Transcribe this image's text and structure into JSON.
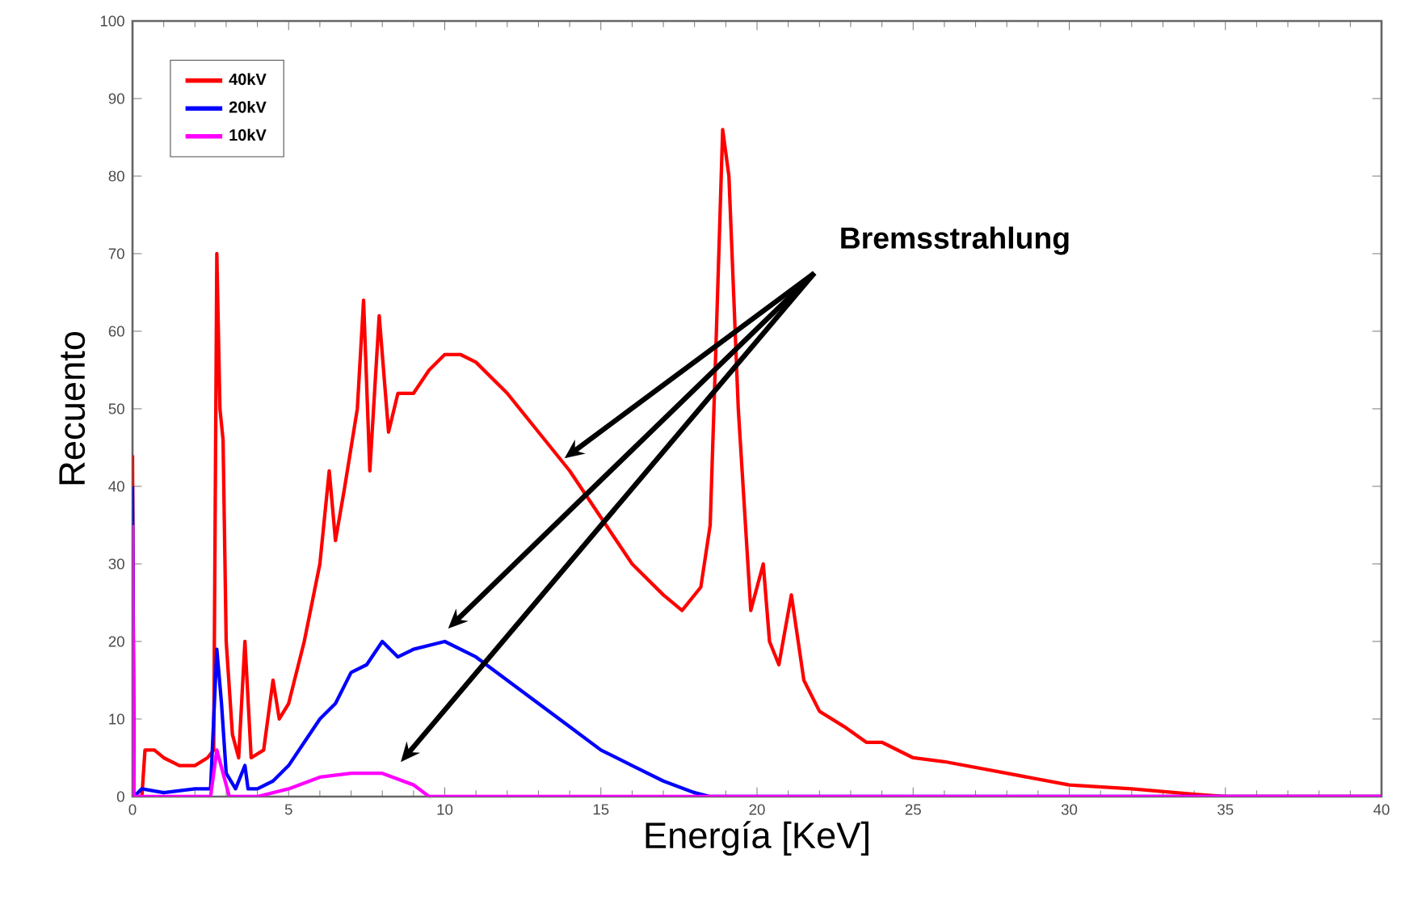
{
  "chart_data": {
    "type": "line",
    "xlabel": "Energía [KeV]",
    "ylabel": "Recuento",
    "xlim": [
      0,
      40
    ],
    "xticks": [
      0,
      5,
      10,
      15,
      20,
      25,
      30,
      35,
      40
    ],
    "ylim": [
      0,
      100
    ],
    "yticks": [
      0,
      10,
      20,
      30,
      40,
      50,
      60,
      70,
      80,
      90,
      100
    ],
    "grid": false,
    "legend": "top left",
    "marker": "none",
    "line_style": "solid",
    "annotations": [
      "Bremsstrahlung"
    ],
    "series": [
      {
        "name": "40kV",
        "color": "#ff0000",
        "x": [
          0,
          0.05,
          0.3,
          0.4,
          0.7,
          1,
          1.5,
          2,
          2.4,
          2.6,
          2.7,
          2.8,
          2.9,
          3.0,
          3.2,
          3.4,
          3.6,
          3.8,
          4.2,
          4.5,
          4.7,
          5,
          5.5,
          6,
          6.3,
          6.5,
          6.8,
          7.2,
          7.4,
          7.6,
          7.9,
          8.2,
          8.5,
          9,
          9.5,
          10,
          10.5,
          11,
          12,
          13,
          14,
          15,
          16,
          17,
          17.6,
          18.2,
          18.5,
          18.7,
          18.9,
          19.1,
          19.4,
          19.8,
          20.2,
          20.4,
          20.7,
          21.1,
          21.5,
          22,
          22.8,
          23.5,
          24,
          25,
          26,
          28,
          30,
          32,
          34,
          35,
          40
        ],
        "values": [
          44,
          0,
          0,
          6,
          6,
          5,
          4,
          4,
          5,
          6,
          70,
          50,
          46,
          20,
          8,
          5,
          20,
          5,
          6,
          15,
          10,
          12,
          20,
          30,
          42,
          33,
          40,
          50,
          64,
          42,
          62,
          47,
          52,
          52,
          55,
          57,
          57,
          56,
          52,
          47,
          42,
          36,
          30,
          26,
          24,
          27,
          35,
          60,
          86,
          80,
          50,
          24,
          30,
          20,
          17,
          26,
          15,
          11,
          9,
          7,
          7,
          5,
          4.5,
          3,
          1.5,
          1,
          0.3,
          0,
          0
        ]
      },
      {
        "name": "20kV",
        "color": "#0000ff",
        "x": [
          0,
          0.05,
          0.3,
          1,
          2,
          2.5,
          2.7,
          2.85,
          3.0,
          3.3,
          3.6,
          3.7,
          4,
          4.5,
          5,
          5.5,
          6,
          6.5,
          7,
          7.5,
          8,
          8.5,
          9,
          10,
          11,
          12,
          13,
          14,
          15,
          16,
          17,
          18,
          18.5,
          40
        ],
        "values": [
          40,
          0,
          1,
          0.5,
          1,
          1,
          19,
          12,
          3,
          1,
          4,
          1,
          1,
          2,
          4,
          7,
          10,
          12,
          16,
          17,
          20,
          18,
          19,
          20,
          18,
          15,
          12,
          9,
          6,
          4,
          2,
          0.5,
          0,
          0
        ]
      },
      {
        "name": "10kV",
        "color": "#ff00ff",
        "x": [
          0,
          0.05,
          2.5,
          2.7,
          2.9,
          3.1,
          4,
          5,
          6,
          7,
          8,
          9,
          9.5,
          40
        ],
        "values": [
          35,
          0,
          0,
          6,
          3,
          0,
          0,
          1,
          2.5,
          3,
          3,
          1.5,
          0,
          0
        ]
      }
    ]
  }
}
